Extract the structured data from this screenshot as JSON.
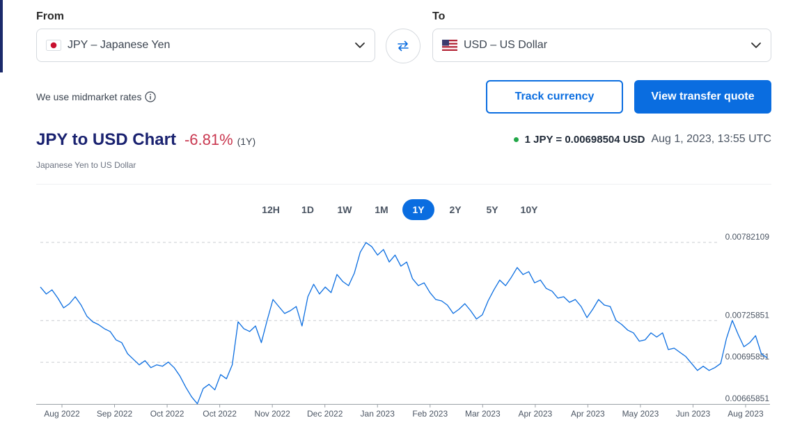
{
  "converter": {
    "from_label": "From",
    "to_label": "To",
    "from_value": "JPY – Japanese Yen",
    "to_value": "USD – US Dollar",
    "from_flag_icon": "japan-flag-icon",
    "to_flag_icon": "us-flag-icon"
  },
  "info": {
    "midmarket_text": "We use midmarket rates"
  },
  "buttons": {
    "track": "Track currency",
    "quote": "View transfer quote"
  },
  "header": {
    "title": "JPY to USD Chart",
    "change": "-6.81%",
    "change_period": "(1Y)",
    "subtitle": "Japanese Yen to US Dollar",
    "rate": "1 JPY = 0.00698504 USD",
    "timestamp": "Aug 1, 2023, 13:55 UTC"
  },
  "periods": [
    "12H",
    "1D",
    "1W",
    "1M",
    "1Y",
    "2Y",
    "5Y",
    "10Y"
  ],
  "active_period": "1Y",
  "colors": {
    "accent": "#0a6de0",
    "negative": "#c9374f",
    "live_dot": "#22a748",
    "title": "#1a2270"
  },
  "chart_data": {
    "type": "line",
    "title": "JPY to USD Chart",
    "x_ticks": [
      "Aug 2022",
      "Sep 2022",
      "Oct 2022",
      "Oct 2022",
      "Nov 2022",
      "Dec 2022",
      "Jan 2023",
      "Feb 2023",
      "Mar 2023",
      "Apr 2023",
      "Apr 2023",
      "May 2023",
      "Jun 2023",
      "Aug 2023"
    ],
    "y_ticks": [
      "0.00782109",
      "0.00725851",
      "0.00695851",
      "0.00665851"
    ],
    "y_tick_values": [
      0.00782109,
      0.00725851,
      0.00695851,
      0.00665851
    ],
    "ylim": [
      0.00665851,
      0.00782109
    ],
    "grid": true,
    "series": [
      {
        "values": [
          0.0075,
          0.00745,
          0.00748,
          0.00742,
          0.00735,
          0.00738,
          0.00743,
          0.00737,
          0.00729,
          0.00725,
          0.00723,
          0.0072,
          0.00718,
          0.00712,
          0.0071,
          0.00702,
          0.00698,
          0.00694,
          0.00697,
          0.00692,
          0.00694,
          0.00693,
          0.00696,
          0.00692,
          0.00686,
          0.00678,
          0.00671,
          0.00666,
          0.00677,
          0.0068,
          0.00676,
          0.00687,
          0.00684,
          0.00694,
          0.00725,
          0.0072,
          0.00718,
          0.00722,
          0.0071,
          0.00726,
          0.00741,
          0.00736,
          0.00731,
          0.00733,
          0.00736,
          0.00722,
          0.00743,
          0.00752,
          0.00745,
          0.0075,
          0.00746,
          0.00759,
          0.00754,
          0.00751,
          0.0076,
          0.00775,
          0.00782,
          0.00779,
          0.00773,
          0.00777,
          0.00768,
          0.00773,
          0.00765,
          0.00768,
          0.00756,
          0.00751,
          0.00753,
          0.00746,
          0.00741,
          0.0074,
          0.00737,
          0.00731,
          0.00734,
          0.00738,
          0.00733,
          0.00727,
          0.0073,
          0.0074,
          0.00748,
          0.00755,
          0.00751,
          0.00757,
          0.00764,
          0.00759,
          0.00761,
          0.00753,
          0.00755,
          0.00749,
          0.00747,
          0.00742,
          0.00743,
          0.00739,
          0.00741,
          0.00736,
          0.00728,
          0.00734,
          0.00741,
          0.00737,
          0.00736,
          0.00726,
          0.00723,
          0.00719,
          0.00717,
          0.00711,
          0.00712,
          0.00717,
          0.00714,
          0.00717,
          0.00705,
          0.00706,
          0.00703,
          0.007,
          0.00695,
          0.0069,
          0.00693,
          0.0069,
          0.00692,
          0.00695,
          0.00713,
          0.00726,
          0.00716,
          0.00707,
          0.0071,
          0.00715,
          0.00702,
          0.00699
        ]
      }
    ]
  }
}
